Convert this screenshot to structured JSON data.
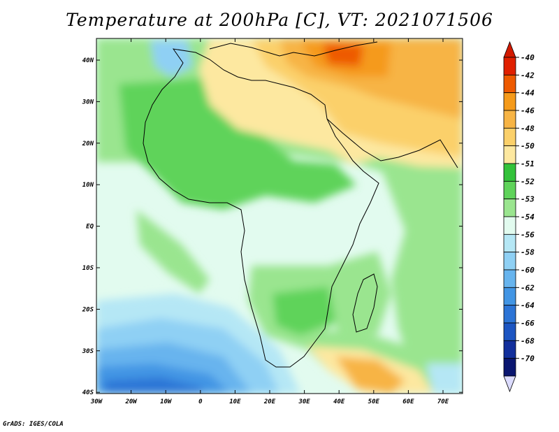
{
  "title": "Temperature at 200hPa [C], VT: 2021071506",
  "credit": "GrADS: IGES/COLA",
  "map": {
    "lon_labels": [
      "30W",
      "20W",
      "10W",
      "0",
      "10E",
      "20E",
      "30E",
      "40E",
      "50E",
      "60E",
      "70E"
    ],
    "lat_labels": [
      "40N",
      "30N",
      "20N",
      "10N",
      "EQ",
      "10S",
      "20S",
      "30S",
      "40S"
    ]
  },
  "colorbar": {
    "levels": [
      {
        "label": "-40",
        "color": "#e02000"
      },
      {
        "label": "-42",
        "color": "#ee5a00"
      },
      {
        "label": "-44",
        "color": "#f59a1a"
      },
      {
        "label": "-46",
        "color": "#f7b445"
      },
      {
        "label": "-48",
        "color": "#fbd06a"
      },
      {
        "label": "-50",
        "color": "#fde8a0"
      },
      {
        "label": "-51",
        "color": "#33c23a"
      },
      {
        "label": "-52",
        "color": "#5fd35a"
      },
      {
        "label": "-53",
        "color": "#9ae58f"
      },
      {
        "label": "-54",
        "color": "#e2fbef"
      },
      {
        "label": "-56",
        "color": "#b5e7f5"
      },
      {
        "label": "-58",
        "color": "#8fd0f4"
      },
      {
        "label": "-60",
        "color": "#67b4ee"
      },
      {
        "label": "-62",
        "color": "#4295e4"
      },
      {
        "label": "-64",
        "color": "#2c74d6"
      },
      {
        "label": "-66",
        "color": "#1c55c2"
      },
      {
        "label": "-68",
        "color": "#122f9c"
      },
      {
        "label": "-70",
        "color": "#0a1670"
      }
    ],
    "top_color": "#d21a00",
    "bottom_color": "#dcdcff"
  }
}
